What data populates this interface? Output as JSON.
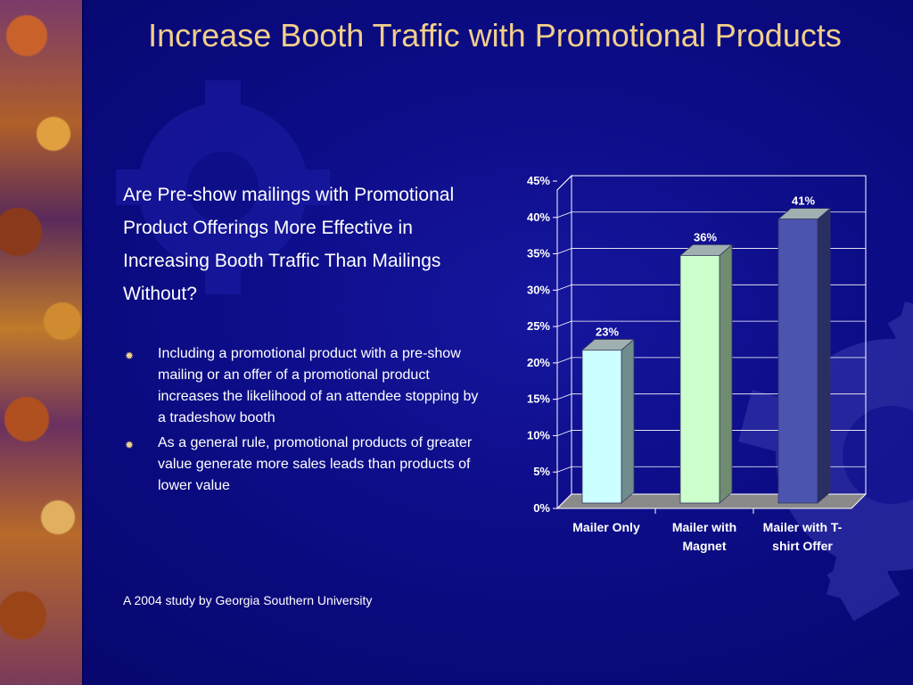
{
  "slide": {
    "title": "Increase Booth Traffic with Promotional Products",
    "question": "Are Pre-show mailings with Promotional Product Offerings More Effective in Increasing Booth Traffic Than Mailings Without?",
    "bullets": [
      "Including a promotional product with a pre-show mailing or an offer of a promotional product increases the likelihood of an attendee stopping by a tradeshow booth",
      "As a general rule, promotional products of greater value generate more sales leads than products of lower value"
    ],
    "bullet_icon": "sunburst-bullet-icon",
    "source": "A 2004 study by Georgia Southern University"
  },
  "colors": {
    "background": "#0c0c86",
    "title": "#f2cf8a",
    "text": "#ffffff"
  },
  "chart_data": {
    "type": "bar",
    "style": "3d",
    "categories": [
      "Mailer Only",
      "Mailer with Magnet",
      "Mailer with T-shirt Offer"
    ],
    "category_lines": [
      [
        "Mailer Only"
      ],
      [
        "Mailer with",
        "Magnet"
      ],
      [
        "Mailer with T-",
        "shirt Offer"
      ]
    ],
    "values": [
      23,
      36,
      41
    ],
    "data_labels": [
      "23%",
      "36%",
      "41%"
    ],
    "bar_colors": [
      "#ccffff",
      "#ccffcc",
      "#4b55b0"
    ],
    "ylim": [
      0,
      45
    ],
    "yticks": [
      0,
      5,
      10,
      15,
      20,
      25,
      30,
      35,
      40,
      45
    ],
    "ytick_labels": [
      "0%",
      "5%",
      "10%",
      "15%",
      "20%",
      "25%",
      "30%",
      "35%",
      "40%",
      "45%"
    ],
    "grid": true,
    "legend": "none"
  }
}
